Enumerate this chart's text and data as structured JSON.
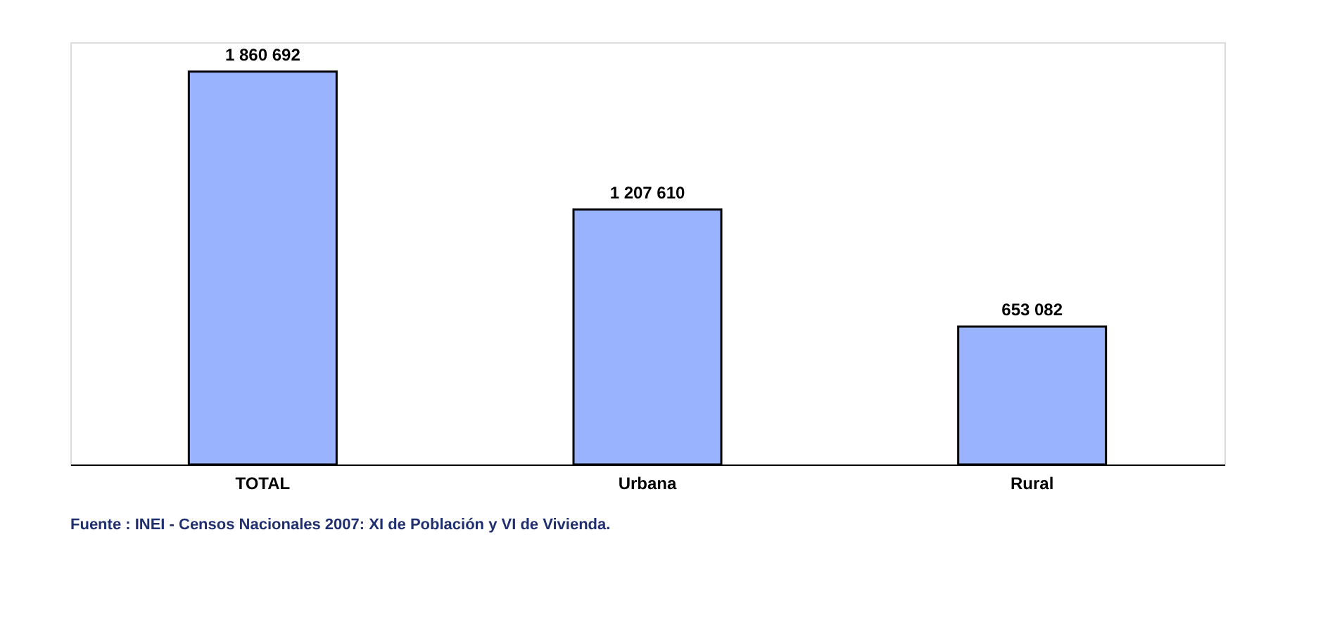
{
  "chart_data": {
    "type": "bar",
    "categories": [
      "TOTAL",
      "Urbana",
      "Rural"
    ],
    "values": [
      1860692,
      1207610,
      653082
    ],
    "value_labels": [
      "1 860 692",
      "1 207 610",
      "653 082"
    ],
    "color": "#99b3ff",
    "annotations": [
      "Fuente : INEI - Censos Nacionales 2007: XI de Población y VI de Vivienda."
    ]
  }
}
